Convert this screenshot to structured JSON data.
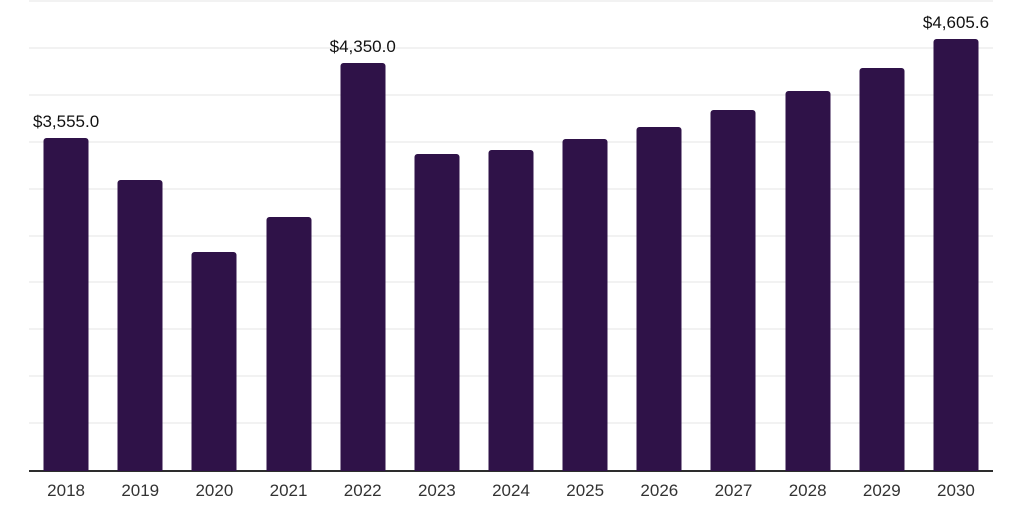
{
  "chart_data": {
    "type": "bar",
    "title": "",
    "xlabel": "",
    "ylabel": "",
    "categories": [
      "2018",
      "2019",
      "2020",
      "2021",
      "2022",
      "2023",
      "2024",
      "2025",
      "2026",
      "2027",
      "2028",
      "2029",
      "2030"
    ],
    "values": [
      3555.0,
      3105,
      2330,
      2705,
      4350.0,
      3375,
      3420,
      3540,
      3665,
      3850,
      4050,
      4295,
      4605.6
    ],
    "data_labels": [
      "$3,555.0",
      "",
      "",
      "",
      "$4,350.0",
      "",
      "",
      "",
      "",
      "",
      "",
      "",
      "$4,605.6"
    ],
    "ylim": [
      0,
      5000
    ],
    "gridline_step": 500,
    "grid": true,
    "legend_position": "none",
    "colors": {
      "bar": "#2f1248",
      "gridline": "#f2f2f2",
      "axis": "#2d2d2d",
      "tick_label": "#333333",
      "value_label": "#111111",
      "background": "#ffffff"
    }
  }
}
